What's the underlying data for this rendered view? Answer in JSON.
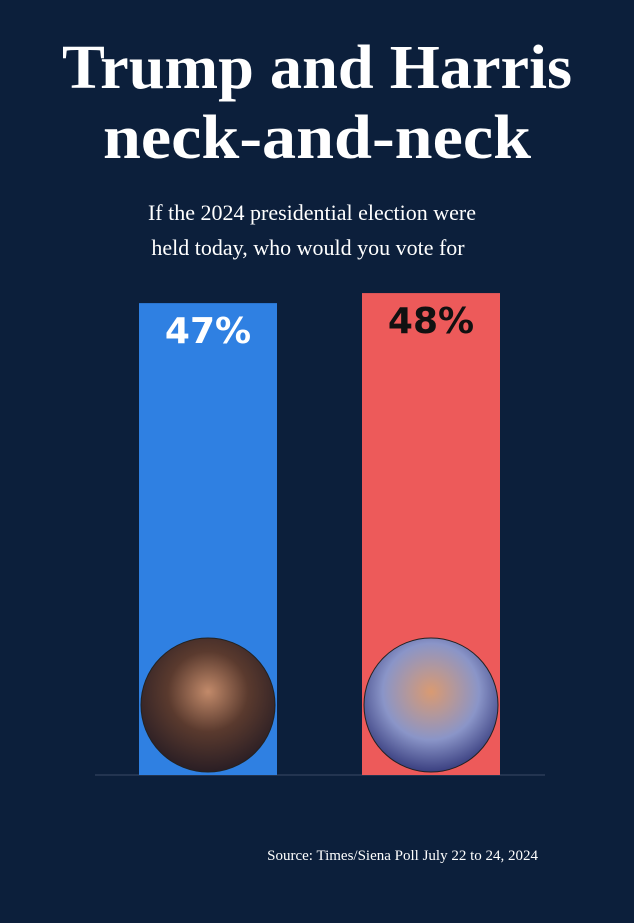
{
  "chart_data": {
    "type": "bar",
    "title": [
      "Trump and Harris",
      "neck-and-neck"
    ],
    "subtitle": [
      "If the 2024 presidential election were",
      "held today, who would you vote for"
    ],
    "categories": [
      null,
      null
    ],
    "values": [
      47,
      48
    ],
    "value_labels": [
      "47%",
      "48%"
    ],
    "colors": [
      "#2f80e2",
      "#ed5a5a"
    ],
    "label_colors": [
      "#ffffff",
      "#111111"
    ],
    "source": "Source: Times/Siena Poll July 22 to 24, 2024"
  }
}
